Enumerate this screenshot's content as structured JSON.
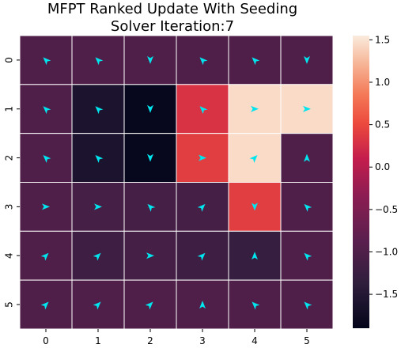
{
  "chart_data": {
    "type": "heatmap",
    "title_lines": [
      "MFPT Ranked Update With Seeding",
      "Solver Iteration:7"
    ],
    "x_ticks": [
      "0",
      "1",
      "2",
      "3",
      "4",
      "5"
    ],
    "y_ticks": [
      "0",
      "1",
      "2",
      "3",
      "4",
      "5"
    ],
    "values": [
      [
        -1.0,
        -1.0,
        -1.0,
        -1.0,
        -1.0,
        -1.0
      ],
      [
        -1.0,
        -1.6,
        -1.85,
        0.3,
        1.45,
        1.45
      ],
      [
        -1.0,
        -1.6,
        -1.85,
        0.4,
        1.45,
        -1.0
      ],
      [
        -1.0,
        -1.1,
        -1.1,
        -1.1,
        0.4,
        -1.0
      ],
      [
        -1.0,
        -1.2,
        -1.1,
        -1.2,
        -1.3,
        -1.0
      ],
      [
        -1.0,
        -1.0,
        -1.0,
        -1.0,
        -1.0,
        -1.0
      ]
    ],
    "arrows": [
      [
        "up-left",
        "up-left",
        "down",
        "up-left",
        "up-left",
        "down"
      ],
      [
        "up-left",
        "up-left",
        "down",
        "up-left",
        "right",
        "right"
      ],
      [
        "up-left",
        "up-left",
        "down",
        "right",
        "up-right",
        "up"
      ],
      [
        "right",
        "right",
        "up-left",
        "up-right",
        "down",
        "up-left"
      ],
      [
        "up-right",
        "up-right",
        "right",
        "up-right",
        "up",
        "up-left"
      ],
      [
        "up-right",
        "up-right",
        "up-right",
        "up",
        "up-left",
        "up-left"
      ]
    ],
    "arrow_color": "#00e5ee",
    "colorbar": {
      "min": -1.9,
      "max": 1.55,
      "ticks": [
        1.5,
        1.0,
        0.5,
        0.0,
        -0.5,
        -1.0,
        -1.5
      ],
      "tick_labels": [
        "1.5",
        "1.0",
        "0.5",
        "0.0",
        "−0.5",
        "−1.0",
        "−1.5"
      ],
      "colormap": "rocket"
    },
    "grid": "white-lines",
    "xlabel": "",
    "ylabel": ""
  }
}
